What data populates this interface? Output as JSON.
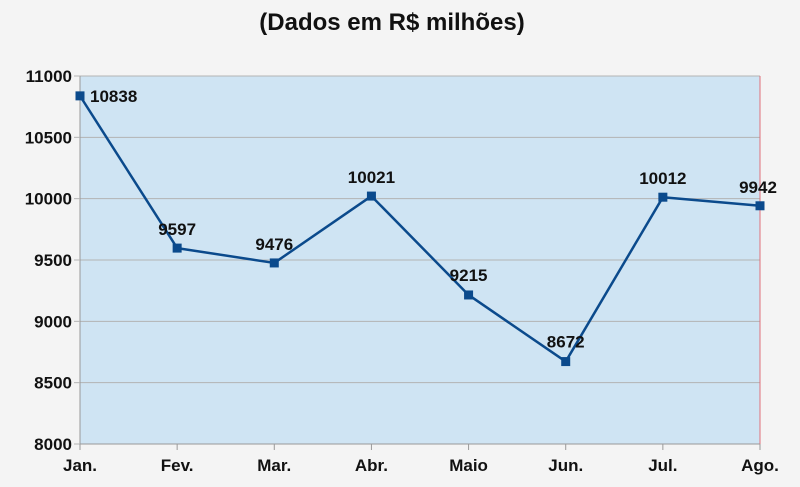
{
  "chart_data": {
    "type": "line",
    "title": "(Dados em R$ milhões)",
    "categories": [
      "Jan.",
      "Fev.",
      "Mar.",
      "Abr.",
      "Maio",
      "Jun.",
      "Jul.",
      "Ago."
    ],
    "series": [
      {
        "values": [
          10838,
          9597,
          9476,
          10021,
          9215,
          8672,
          10012,
          9942
        ]
      }
    ],
    "data_labels": [
      "10838",
      "9597",
      "9476",
      "10021",
      "9215",
      "8672",
      "10012",
      "9942"
    ],
    "ylim": [
      8000,
      11000
    ],
    "yticks": [
      8000,
      8500,
      9000,
      9500,
      10000,
      10500,
      11000
    ],
    "grid": true,
    "colors": {
      "plot_background": "#cfe4f3",
      "line": "#0b4a8c",
      "marker": "#0b4a8c",
      "gridline": "#b3b3b3",
      "page_background": "#f4f4f4"
    }
  }
}
